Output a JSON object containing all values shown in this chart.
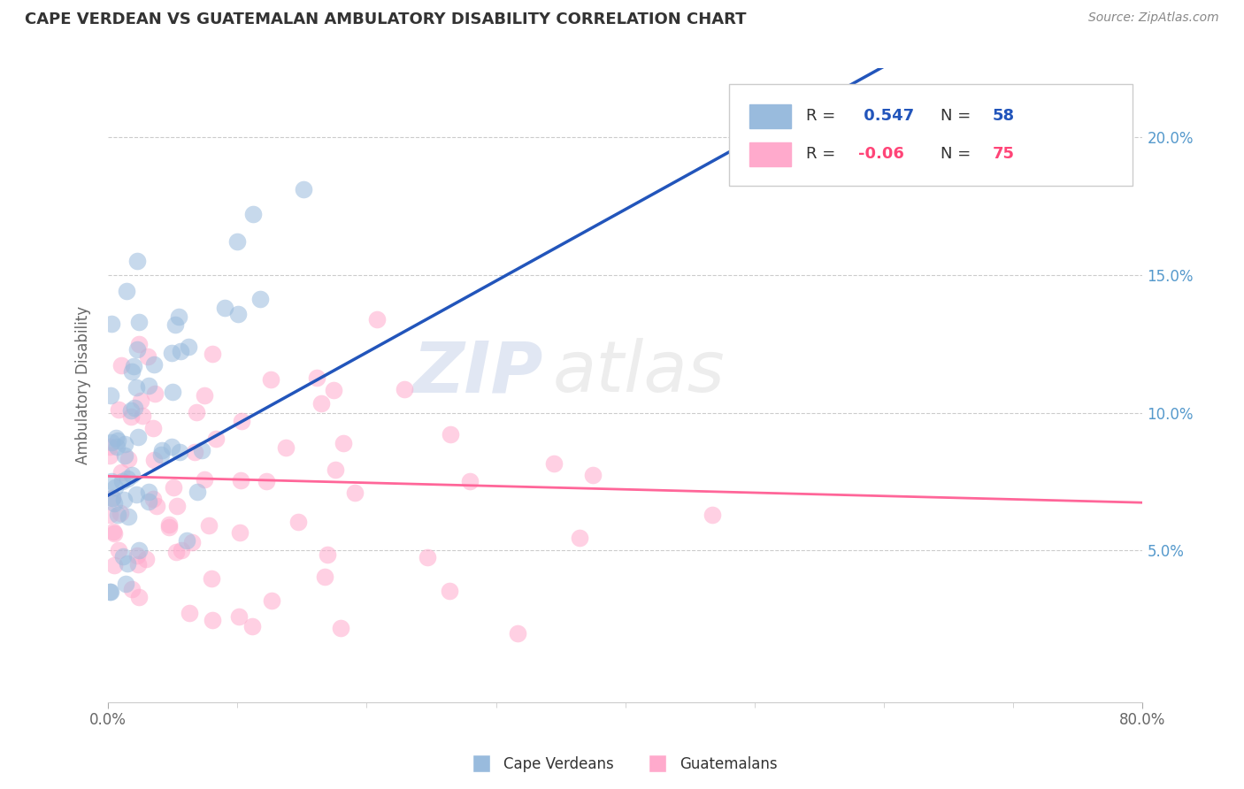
{
  "title": "CAPE VERDEAN VS GUATEMALAN AMBULATORY DISABILITY CORRELATION CHART",
  "source": "Source: ZipAtlas.com",
  "ylabel": "Ambulatory Disability",
  "ytick_labels": [
    "5.0%",
    "10.0%",
    "15.0%",
    "20.0%"
  ],
  "ytick_values": [
    0.05,
    0.1,
    0.15,
    0.2
  ],
  "xlim": [
    0.0,
    0.8
  ],
  "ylim": [
    -0.005,
    0.225
  ],
  "xticklabels": [
    "0.0%",
    "80.0%"
  ],
  "xtick_positions": [
    0.0,
    0.8
  ],
  "cape_verdean_R": 0.547,
  "cape_verdean_N": 58,
  "guatemalan_R": -0.06,
  "guatemalan_N": 75,
  "legend_labels": [
    "Cape Verdeans",
    "Guatemalans"
  ],
  "blue_scatter_color": "#99BBDD",
  "pink_scatter_color": "#FFAACC",
  "blue_line_color": "#2255BB",
  "pink_line_color": "#FF6699",
  "grey_dash_color": "#AAAAAA",
  "bg_color": "#FFFFFF",
  "grid_color": "#CCCCCC",
  "watermark_color": "#DDDDEE",
  "title_color": "#333333",
  "source_color": "#888888",
  "ylabel_color": "#666666",
  "tick_color": "#5599CC",
  "xtick_color": "#666666",
  "legend_text_color": "#333333",
  "legend_R_blue_color": "#2255BB",
  "legend_R_pink_color": "#FF4477",
  "legend_N_blue_color": "#2255BB",
  "legend_N_pink_color": "#FF4477",
  "note_scatter_seed_cv": 77,
  "note_scatter_seed_gt": 99
}
